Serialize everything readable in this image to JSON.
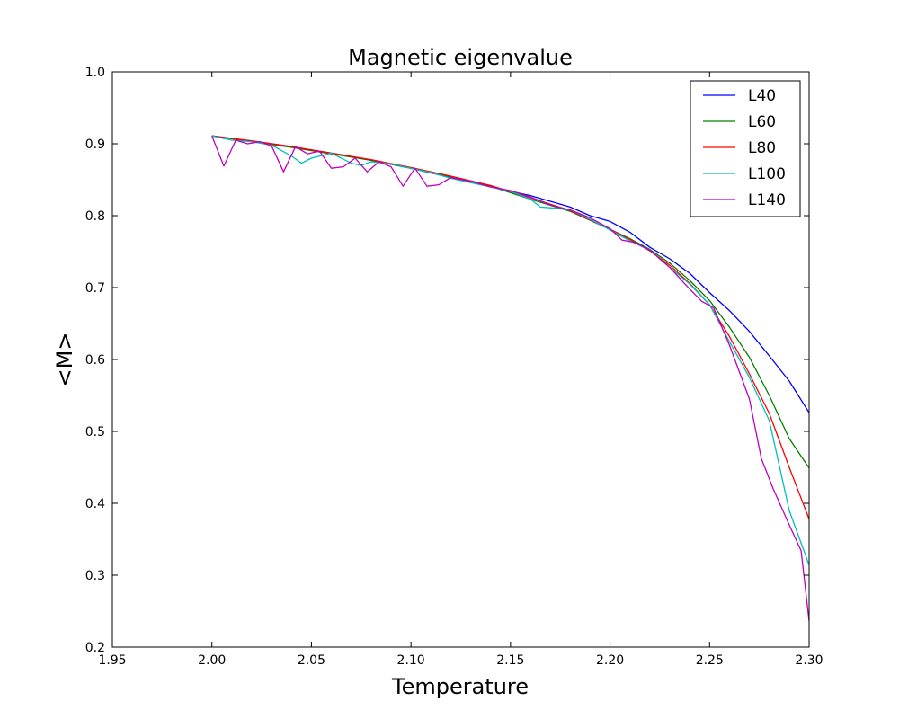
{
  "chart_data": {
    "type": "line",
    "title": "Magnetic eigenvalue",
    "xlabel": "Temperature",
    "ylabel": "<M>",
    "xlim": [
      1.95,
      2.3
    ],
    "ylim": [
      0.2,
      1.0
    ],
    "xticks": [
      "1.95",
      "2.00",
      "2.05",
      "2.10",
      "2.15",
      "2.20",
      "2.25",
      "2.30"
    ],
    "yticks": [
      "0.2",
      "0.3",
      "0.4",
      "0.5",
      "0.6",
      "0.7",
      "0.8",
      "0.9",
      "1.0"
    ],
    "grid": false,
    "legend_position": "top-right",
    "series": [
      {
        "name": "L40",
        "color": "#0000ff",
        "x": [
          2.0,
          2.02,
          2.04,
          2.06,
          2.08,
          2.1,
          2.12,
          2.14,
          2.16,
          2.18,
          2.19,
          2.2,
          2.21,
          2.22,
          2.23,
          2.24,
          2.25,
          2.26,
          2.27,
          2.28,
          2.29,
          2.3
        ],
        "y": [
          0.911,
          0.904,
          0.896,
          0.887,
          0.877,
          0.866,
          0.853,
          0.84,
          0.828,
          0.812,
          0.8,
          0.792,
          0.777,
          0.756,
          0.74,
          0.72,
          0.693,
          0.668,
          0.639,
          0.605,
          0.57,
          0.526
        ]
      },
      {
        "name": "L60",
        "color": "#008000",
        "x": [
          2.0,
          2.02,
          2.04,
          2.06,
          2.08,
          2.1,
          2.12,
          2.14,
          2.16,
          2.18,
          2.2,
          2.21,
          2.22,
          2.23,
          2.24,
          2.25,
          2.26,
          2.27,
          2.28,
          2.29,
          2.3
        ],
        "y": [
          0.911,
          0.903,
          0.895,
          0.886,
          0.877,
          0.866,
          0.854,
          0.841,
          0.823,
          0.806,
          0.781,
          0.768,
          0.753,
          0.734,
          0.71,
          0.682,
          0.645,
          0.603,
          0.55,
          0.49,
          0.449
        ]
      },
      {
        "name": "L80",
        "color": "#ff0000",
        "x": [
          2.0,
          2.02,
          2.04,
          2.06,
          2.08,
          2.1,
          2.12,
          2.14,
          2.16,
          2.18,
          2.2,
          2.21,
          2.22,
          2.23,
          2.24,
          2.25,
          2.26,
          2.27,
          2.28,
          2.29,
          2.3
        ],
        "y": [
          0.911,
          0.904,
          0.896,
          0.887,
          0.878,
          0.867,
          0.855,
          0.842,
          0.825,
          0.807,
          0.781,
          0.767,
          0.751,
          0.731,
          0.706,
          0.676,
          0.632,
          0.58,
          0.525,
          0.45,
          0.378
        ]
      },
      {
        "name": "L100",
        "color": "#00bfbf",
        "x": [
          2.0,
          2.01,
          2.02,
          2.03,
          2.04,
          2.045,
          2.05,
          2.06,
          2.065,
          2.07,
          2.075,
          2.08,
          2.09,
          2.1,
          2.11,
          2.12,
          2.13,
          2.14,
          2.15,
          2.16,
          2.165,
          2.17,
          2.18,
          2.19,
          2.2,
          2.21,
          2.22,
          2.23,
          2.24,
          2.25,
          2.26,
          2.27,
          2.28,
          2.29,
          2.3
        ],
        "y": [
          0.911,
          0.905,
          0.903,
          0.898,
          0.883,
          0.873,
          0.88,
          0.887,
          0.88,
          0.873,
          0.87,
          0.875,
          0.872,
          0.866,
          0.86,
          0.852,
          0.846,
          0.84,
          0.834,
          0.823,
          0.812,
          0.811,
          0.808,
          0.795,
          0.78,
          0.765,
          0.752,
          0.728,
          0.705,
          0.676,
          0.625,
          0.575,
          0.515,
          0.39,
          0.314
        ]
      },
      {
        "name": "L140",
        "color": "#bf00bf",
        "x": [
          2.0,
          2.006,
          2.012,
          2.018,
          2.024,
          2.03,
          2.036,
          2.042,
          2.048,
          2.054,
          2.06,
          2.066,
          2.072,
          2.078,
          2.084,
          2.09,
          2.096,
          2.102,
          2.108,
          2.114,
          2.12,
          2.13,
          2.14,
          2.15,
          2.16,
          2.17,
          2.18,
          2.19,
          2.2,
          2.206,
          2.212,
          2.22,
          2.23,
          2.24,
          2.246,
          2.252,
          2.26,
          2.27,
          2.276,
          2.282,
          2.29,
          2.296,
          2.3
        ],
        "y": [
          0.911,
          0.869,
          0.905,
          0.9,
          0.903,
          0.897,
          0.861,
          0.896,
          0.886,
          0.89,
          0.866,
          0.868,
          0.88,
          0.861,
          0.875,
          0.868,
          0.841,
          0.866,
          0.841,
          0.843,
          0.853,
          0.848,
          0.84,
          0.835,
          0.826,
          0.815,
          0.808,
          0.797,
          0.782,
          0.766,
          0.763,
          0.752,
          0.728,
          0.698,
          0.681,
          0.672,
          0.62,
          0.545,
          0.462,
          0.42,
          0.37,
          0.334,
          0.236
        ]
      }
    ]
  }
}
